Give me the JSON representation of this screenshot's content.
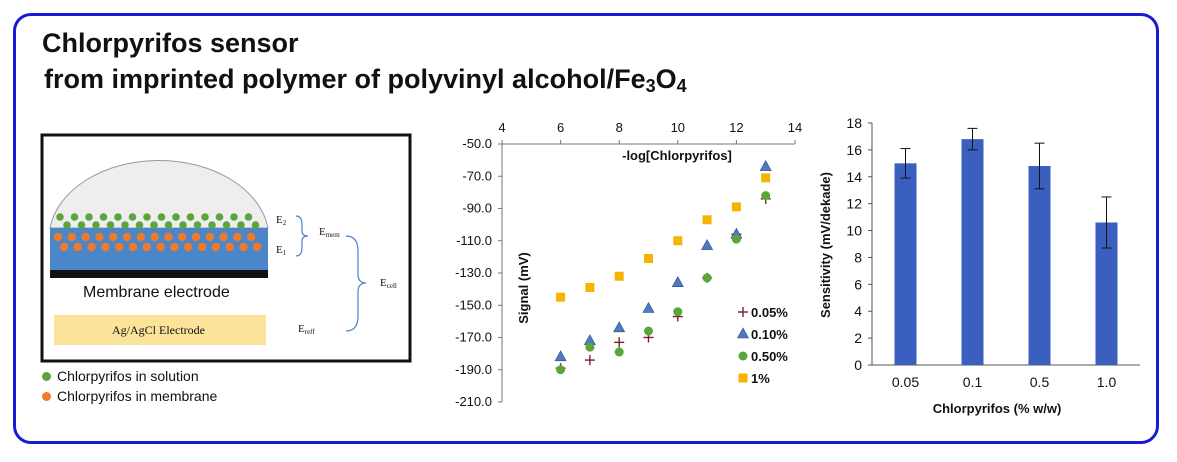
{
  "title": {
    "line1": "Chlorpyrifos sensor",
    "line2": "from imprinted polymer of polyvinyl alcohol/Fe",
    "sub1": "3",
    "mid": "O",
    "sub2": "4"
  },
  "diagram": {
    "membrane_label": "Membrane electrode",
    "reference_label": "Ag/AgCl Electrode",
    "E2": "E",
    "E2_sub": "2",
    "E1": "E",
    "E1_sub": "1",
    "Emem": "E",
    "Emem_sub": "mem",
    "Ecell": "E",
    "Ecell_sub": "cell",
    "Ereff": "E",
    "Ereff_sub": "reff",
    "legend": [
      {
        "label": "Chlorpyrifos in solution",
        "color": "#5aa63b"
      },
      {
        "label": "Chlorpyrifos in membrane",
        "color": "#f07a2a"
      }
    ],
    "colors": {
      "dome": "#eeeeee",
      "membrane": "#4a86c8",
      "base": "#111111",
      "reference": "#fbe39a"
    }
  },
  "chart_data": [
    {
      "type": "scatter",
      "xlabel": "-log[Chlorpyrifos]",
      "ylabel": "Signal (mV)",
      "xlim": [
        4,
        14
      ],
      "ylim": [
        -210,
        -50
      ],
      "xticks": [
        "4",
        "6",
        "8",
        "10",
        "12",
        "14"
      ],
      "yticks": [
        "-50.0",
        "-70.0",
        "-90.0",
        "-110.0",
        "-130.0",
        "-150.0",
        "-170.0",
        "-190.0",
        "-210.0"
      ],
      "x_axis_position": "top",
      "series": [
        {
          "name": "0.05%",
          "marker": "plus",
          "color": "#7a1f2b",
          "x": [
            6,
            7,
            8,
            9,
            10,
            11,
            12,
            13
          ],
          "y": [
            -189,
            -184,
            -173,
            -170,
            -157,
            -133,
            -106,
            -84
          ]
        },
        {
          "name": "0.10%",
          "marker": "triangle",
          "color": "#4f7ac0",
          "x": [
            6,
            7,
            8,
            9,
            10,
            11,
            12,
            13
          ],
          "y": [
            -182,
            -172,
            -164,
            -152,
            -136,
            -113,
            -106,
            -64
          ]
        },
        {
          "name": "0.50%",
          "marker": "circle",
          "color": "#5aa63b",
          "x": [
            6,
            7,
            8,
            9,
            10,
            11,
            12,
            13
          ],
          "y": [
            -190,
            -176,
            -179,
            -166,
            -154,
            -133,
            -109,
            -82
          ]
        },
        {
          "name": "1%",
          "marker": "square",
          "color": "#f6b400",
          "x": [
            6,
            7,
            8,
            9,
            10,
            11,
            12,
            13
          ],
          "y": [
            -145,
            -139,
            -132,
            -121,
            -110,
            -97,
            -89,
            -71
          ]
        }
      ],
      "legend_position": "bottom-right"
    },
    {
      "type": "bar",
      "xlabel": "Chlorpyrifos (% w/w)",
      "ylabel": "Sensitivity (mV/dekade)",
      "categories": [
        "0.05",
        "0.1",
        "0.5",
        "1.0"
      ],
      "values": [
        15.0,
        16.8,
        14.8,
        10.6
      ],
      "errors": [
        1.1,
        0.8,
        1.7,
        1.9
      ],
      "ylim": [
        0,
        18
      ],
      "yticks": [
        "0",
        "2",
        "4",
        "6",
        "8",
        "10",
        "12",
        "14",
        "16",
        "18"
      ],
      "color": "#3a5fbf"
    }
  ]
}
